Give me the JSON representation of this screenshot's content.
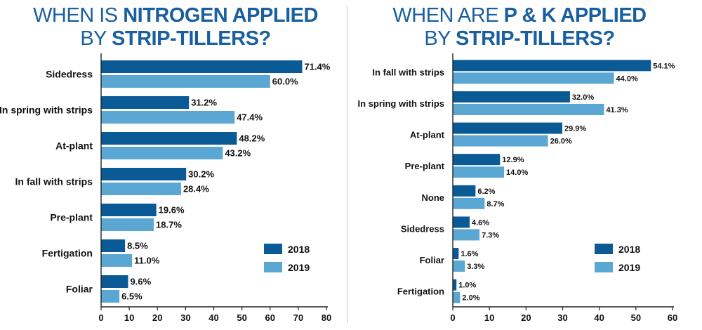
{
  "colors": {
    "series_2018": "#0a5a96",
    "series_2019": "#5ba7d3",
    "title": "#1a5f9e",
    "axis": "#222222"
  },
  "chart_data": [
    {
      "type": "bar",
      "orientation": "horizontal",
      "title_plain": "WHEN IS ",
      "title_bold": "NITROGEN APPLIED",
      "title_line2_plain": "BY ",
      "title_line2_bold": "STRIP-TILLERS?",
      "categories": [
        "Sidedress",
        "In spring with strips",
        "At-plant",
        "In fall with strips",
        "Pre-plant",
        "Fertigation",
        "Foliar"
      ],
      "series": [
        {
          "name": "2018",
          "values": [
            71.4,
            31.2,
            48.2,
            30.2,
            19.6,
            8.5,
            9.6
          ],
          "labels": [
            "71.4%",
            "31.2%",
            "48.2%",
            "30.2%",
            "19.6%",
            "8.5%",
            "9.6%"
          ]
        },
        {
          "name": "2019",
          "values": [
            60.0,
            47.4,
            43.2,
            28.4,
            18.7,
            11.0,
            6.5
          ],
          "labels": [
            "60.0%",
            "47.4%",
            "43.2%",
            "28.4%",
            "18.7%",
            "11.0%",
            "6.5%"
          ]
        }
      ],
      "xlim": [
        0,
        80
      ],
      "xticks": [
        "0",
        "10",
        "20",
        "30",
        "40",
        "50",
        "60",
        "70",
        "80"
      ],
      "grid": false,
      "legend": "bottom-right"
    },
    {
      "type": "bar",
      "orientation": "horizontal",
      "title_plain": "WHEN ARE ",
      "title_bold": "P & K APPLIED",
      "title_line2_plain": "BY ",
      "title_line2_bold": "STRIP-TILLERS?",
      "categories": [
        "In fall with strips",
        "In spring with strips",
        "At-plant",
        "Pre-plant",
        "None",
        "Sidedress",
        "Foliar",
        "Fertigation"
      ],
      "series": [
        {
          "name": "2018",
          "values": [
            54.1,
            32.0,
            29.9,
            12.9,
            6.2,
            4.6,
            1.6,
            1.0
          ],
          "labels": [
            "54.1%",
            "32.0%",
            "29.9%",
            "12.9%",
            "6.2%",
            "4.6%",
            "1.6%",
            "1.0%"
          ]
        },
        {
          "name": "2019",
          "values": [
            44.0,
            41.3,
            26.0,
            14.0,
            8.7,
            7.3,
            3.3,
            2.0
          ],
          "labels": [
            "44.0%",
            "41.3%",
            "26.0%",
            "14.0%",
            "8.7%",
            "7.3%",
            "3.3%",
            "2.0%"
          ]
        }
      ],
      "xlim": [
        0,
        60
      ],
      "xticks": [
        "0",
        "10",
        "20",
        "30",
        "40",
        "50",
        "60"
      ],
      "grid": false,
      "legend": "bottom-right"
    }
  ]
}
